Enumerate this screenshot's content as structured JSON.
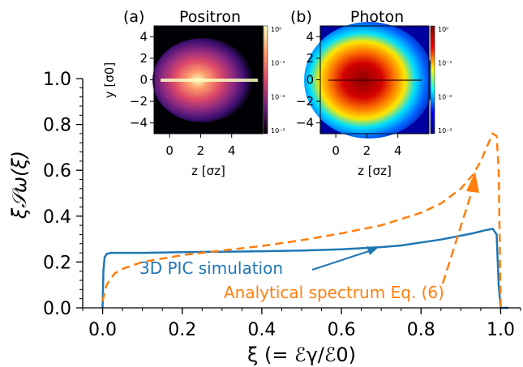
{
  "chart_data": [
    {
      "type": "line",
      "xlabel": "ξ (= ℰγ/ℰ0)",
      "ylabel": "ξ𝒮ω(ξ)",
      "xlim": [
        -0.05,
        1.05
      ],
      "ylim": [
        0.0,
        1.0
      ],
      "x_ticks": [
        "0.0",
        "0.2",
        "0.4",
        "0.6",
        "0.8",
        "1.0"
      ],
      "y_ticks": [
        "0.0",
        "0.2",
        "0.4",
        "0.6",
        "0.8",
        "1.0"
      ],
      "grid": false,
      "series": [
        {
          "name": "3D PIC simulation",
          "color": "#1f77b4",
          "style": "solid",
          "x": [
            0.0,
            0.002,
            0.005,
            0.01,
            0.02,
            0.05,
            0.1,
            0.2,
            0.3,
            0.4,
            0.5,
            0.6,
            0.7,
            0.75,
            0.8,
            0.85,
            0.9,
            0.93,
            0.96,
            0.98,
            0.99,
            0.995,
            1.0,
            1.02
          ],
          "y": [
            0.0,
            0.16,
            0.22,
            0.235,
            0.24,
            0.24,
            0.24,
            0.243,
            0.245,
            0.247,
            0.25,
            0.255,
            0.265,
            0.272,
            0.285,
            0.298,
            0.315,
            0.325,
            0.338,
            0.345,
            0.32,
            0.1,
            0.0,
            0.0
          ]
        },
        {
          "name": "Analytical spectrum Eq. (6)",
          "color": "#ff7f0e",
          "style": "dashed",
          "x": [
            0.0,
            0.01,
            0.03,
            0.05,
            0.1,
            0.15,
            0.2,
            0.3,
            0.4,
            0.5,
            0.6,
            0.7,
            0.8,
            0.85,
            0.9,
            0.93,
            0.95,
            0.97,
            0.98,
            0.99,
            0.995,
            1.0
          ],
          "y": [
            0.03,
            0.1,
            0.15,
            0.17,
            0.2,
            0.215,
            0.23,
            0.25,
            0.27,
            0.295,
            0.325,
            0.36,
            0.415,
            0.455,
            0.52,
            0.58,
            0.64,
            0.72,
            0.76,
            0.75,
            0.6,
            0.0
          ]
        }
      ],
      "annotations": [
        {
          "text": "3D PIC simulation",
          "color": "#1f77b4",
          "arrow_to": [
            0.7,
            0.235
          ]
        },
        {
          "text": "Analytical spectrum Eq. (6)",
          "color": "#ff7f0e",
          "arrow_to": [
            0.94,
            0.55
          ]
        }
      ]
    },
    {
      "type": "heatmap",
      "panel": "(a)",
      "title": "Positron",
      "xlabel": "z [σz]",
      "ylabel": "y [σ0]",
      "xlim": [
        -1,
        6
      ],
      "ylim": [
        -5,
        5
      ],
      "x_ticks": [
        "0",
        "2",
        "4"
      ],
      "y_ticks": [
        "4",
        "2",
        "0",
        "−2",
        "−4"
      ],
      "colormap": "magma",
      "colorbar_ticks": [
        "10⁰",
        "10⁻¹",
        "10⁻²",
        "10⁻³"
      ],
      "colorbar_scale": "log"
    },
    {
      "type": "heatmap",
      "panel": "(b)",
      "title": "Photon",
      "xlabel": "z [σz]",
      "xlim": [
        -1,
        6
      ],
      "ylim": [
        -5,
        5
      ],
      "x_ticks": [
        "0",
        "2",
        "4"
      ],
      "y_ticks": [
        "4",
        "2",
        "0",
        "−2",
        "−4"
      ],
      "colormap": "jet",
      "colorbar_ticks": [
        "10⁰",
        "10⁻¹",
        "10⁻²",
        "10⁻³"
      ],
      "colorbar_scale": "log"
    }
  ]
}
